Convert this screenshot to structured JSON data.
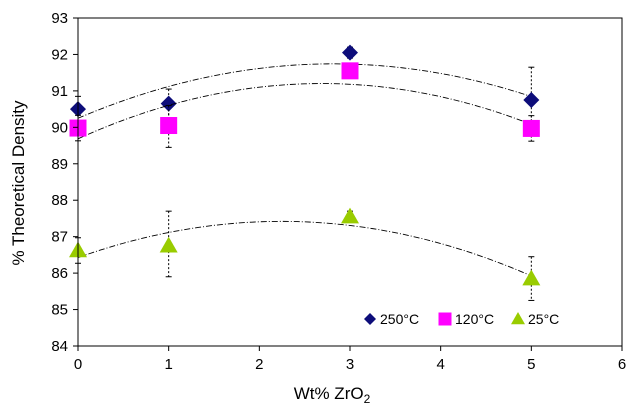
{
  "chart_data": {
    "type": "scatter",
    "xlabel": "Wt% ZrO",
    "xlabel_sub": "2",
    "ylabel": "% Theoretical Density",
    "xlim": [
      0,
      6
    ],
    "ylim": [
      84,
      93
    ],
    "x_ticks": [
      "0",
      "1",
      "2",
      "3",
      "4",
      "5",
      "6"
    ],
    "y_ticks": [
      "84",
      "85",
      "86",
      "87",
      "88",
      "89",
      "90",
      "91",
      "92",
      "93"
    ],
    "grid": false,
    "legend_position": "bottom-right",
    "series": [
      {
        "name": "250°C",
        "marker": "diamond",
        "color": "#0d0d7a",
        "x": [
          0,
          1,
          3,
          5
        ],
        "y": [
          90.5,
          90.65,
          92.05,
          90.75
        ],
        "err_low": [
          0.35,
          0.4,
          0.15,
          0.8
        ],
        "err_high": [
          0.35,
          0.4,
          0.15,
          0.9
        ],
        "trend": "quadratic"
      },
      {
        "name": "120°C",
        "marker": "square",
        "color": "#ff00ff",
        "x": [
          0,
          1,
          3,
          5
        ],
        "y": [
          89.98,
          90.05,
          91.55,
          89.97
        ],
        "err_low": [
          0.35,
          0.6,
          0.2,
          0.35
        ],
        "err_high": [
          0.35,
          0.55,
          0.2,
          0.35
        ],
        "trend": "quadratic"
      },
      {
        "name": "25°C",
        "marker": "triangle",
        "color": "#99cc00",
        "x": [
          0,
          1,
          3,
          5
        ],
        "y": [
          86.62,
          86.75,
          87.55,
          85.85
        ],
        "err_low": [
          0.35,
          0.85,
          0.15,
          0.6
        ],
        "err_high": [
          0.35,
          0.95,
          0.15,
          0.6
        ],
        "trend": "quadratic"
      }
    ]
  }
}
